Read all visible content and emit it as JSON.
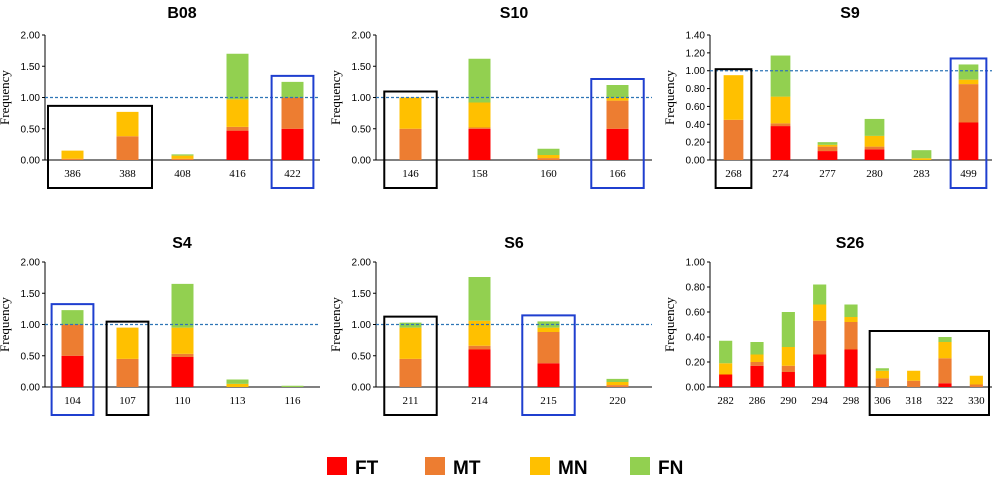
{
  "colors": {
    "FT": "#ff0000",
    "MT": "#ed7d31",
    "MN": "#ffc000",
    "FN": "#92d050",
    "threshold": "#2e75b6",
    "black_box": "#000000",
    "blue_box": "#1f3fcf"
  },
  "legend": [
    "FT",
    "MT",
    "MN",
    "FN"
  ],
  "chart_data": [
    {
      "type": "bar",
      "stacked": true,
      "title": "B08",
      "ylabel": "Frequency",
      "ylim": [
        0,
        2
      ],
      "yticks": [
        "0.00",
        "0.50",
        "1.00",
        "1.50",
        "2.00"
      ],
      "threshold": 1.0,
      "categories": [
        "386",
        "388",
        "408",
        "416",
        "422"
      ],
      "series": [
        {
          "name": "FT",
          "values": [
            0,
            0,
            0,
            0.47,
            0.5
          ]
        },
        {
          "name": "MT",
          "values": [
            0.02,
            0.38,
            0.02,
            0.06,
            0.5
          ]
        },
        {
          "name": "MN",
          "values": [
            0.13,
            0.39,
            0.05,
            0.44,
            0
          ]
        },
        {
          "name": "FN",
          "values": [
            0,
            0,
            0.02,
            0.73,
            0.25
          ]
        }
      ],
      "boxes": [
        {
          "color": "black",
          "from": 0,
          "to": 1
        },
        {
          "color": "blue",
          "from": 4,
          "to": 4
        }
      ]
    },
    {
      "type": "bar",
      "stacked": true,
      "title": "S10",
      "ylabel": "Frequency",
      "ylim": [
        0,
        2
      ],
      "yticks": [
        "0.00",
        "0.50",
        "1.00",
        "1.50",
        "2.00"
      ],
      "threshold": 1.0,
      "categories": [
        "146",
        "158",
        "160",
        "166"
      ],
      "series": [
        {
          "name": "FT",
          "values": [
            0,
            0.5,
            0,
            0.5
          ]
        },
        {
          "name": "MT",
          "values": [
            0.5,
            0.02,
            0.03,
            0.45
          ]
        },
        {
          "name": "MN",
          "values": [
            0.5,
            0.4,
            0.05,
            0.05
          ]
        },
        {
          "name": "FN",
          "values": [
            0,
            0.7,
            0.1,
            0.2
          ]
        }
      ],
      "boxes": [
        {
          "color": "black",
          "from": 0,
          "to": 0
        },
        {
          "color": "blue",
          "from": 3,
          "to": 3
        }
      ]
    },
    {
      "type": "bar",
      "stacked": true,
      "title": "S9",
      "ylabel": "Frequency",
      "ylim": [
        0,
        1.4
      ],
      "yticks": [
        "0.00",
        "0.20",
        "0.40",
        "0.60",
        "0.80",
        "1.00",
        "1.20",
        "1.40"
      ],
      "threshold": 1.0,
      "categories": [
        "268",
        "274",
        "277",
        "280",
        "283",
        "499"
      ],
      "series": [
        {
          "name": "FT",
          "values": [
            0,
            0.38,
            0.1,
            0.12,
            0,
            0.42
          ]
        },
        {
          "name": "MT",
          "values": [
            0.45,
            0.03,
            0.05,
            0.03,
            0,
            0.43
          ]
        },
        {
          "name": "MN",
          "values": [
            0.5,
            0.3,
            0.02,
            0.12,
            0.02,
            0.05
          ]
        },
        {
          "name": "FN",
          "values": [
            0,
            0.46,
            0.03,
            0.19,
            0.09,
            0.17
          ]
        }
      ],
      "boxes": [
        {
          "color": "black",
          "from": 0,
          "to": 0
        },
        {
          "color": "blue",
          "from": 5,
          "to": 5
        }
      ]
    },
    {
      "type": "bar",
      "stacked": true,
      "title": "S4",
      "ylabel": "Frequency",
      "ylim": [
        0,
        2
      ],
      "yticks": [
        "0.00",
        "0.50",
        "1.00",
        "1.50",
        "2.00"
      ],
      "threshold": 1.0,
      "categories": [
        "104",
        "107",
        "110",
        "113",
        "116"
      ],
      "series": [
        {
          "name": "FT",
          "values": [
            0.5,
            0,
            0.48,
            0,
            0
          ]
        },
        {
          "name": "MT",
          "values": [
            0.5,
            0.45,
            0.05,
            0,
            0
          ]
        },
        {
          "name": "MN",
          "values": [
            0,
            0.5,
            0.42,
            0.05,
            0
          ]
        },
        {
          "name": "FN",
          "values": [
            0.23,
            0,
            0.7,
            0.07,
            0.02
          ]
        }
      ],
      "boxes": [
        {
          "color": "blue",
          "from": 0,
          "to": 0
        },
        {
          "color": "black",
          "from": 1,
          "to": 1
        }
      ]
    },
    {
      "type": "bar",
      "stacked": true,
      "title": "S6",
      "ylabel": "Frequency",
      "ylim": [
        0,
        2
      ],
      "yticks": [
        "0.00",
        "0.50",
        "1.00",
        "1.50",
        "2.00"
      ],
      "threshold": 1.0,
      "categories": [
        "211",
        "214",
        "215",
        "220"
      ],
      "series": [
        {
          "name": "FT",
          "values": [
            0,
            0.6,
            0.38,
            0
          ]
        },
        {
          "name": "MT",
          "values": [
            0.45,
            0.06,
            0.5,
            0.03
          ]
        },
        {
          "name": "MN",
          "values": [
            0.5,
            0.4,
            0.07,
            0.05
          ]
        },
        {
          "name": "FN",
          "values": [
            0.08,
            0.7,
            0.1,
            0.05
          ]
        }
      ],
      "boxes": [
        {
          "color": "black",
          "from": 0,
          "to": 0
        },
        {
          "color": "blue",
          "from": 2,
          "to": 2
        }
      ]
    },
    {
      "type": "bar",
      "stacked": true,
      "title": "S26",
      "ylabel": "Frequency",
      "ylim": [
        0,
        1
      ],
      "yticks": [
        "0.00",
        "0.20",
        "0.40",
        "0.60",
        "0.80",
        "1.00"
      ],
      "threshold": null,
      "categories": [
        "282",
        "286",
        "290",
        "294",
        "298",
        "306",
        "318",
        "322",
        "330"
      ],
      "series": [
        {
          "name": "FT",
          "values": [
            0.1,
            0.17,
            0.12,
            0.26,
            0.3,
            0,
            0,
            0.03,
            0
          ]
        },
        {
          "name": "MT",
          "values": [
            0,
            0.03,
            0.05,
            0.27,
            0.22,
            0.07,
            0.05,
            0.2,
            0.02
          ]
        },
        {
          "name": "MN",
          "values": [
            0.09,
            0.06,
            0.15,
            0.13,
            0.04,
            0.06,
            0.08,
            0.13,
            0.07
          ]
        },
        {
          "name": "FN",
          "values": [
            0.18,
            0.1,
            0.28,
            0.16,
            0.1,
            0.02,
            0,
            0.04,
            0
          ]
        }
      ],
      "boxes": [
        {
          "color": "black",
          "from": 5,
          "to": 8
        }
      ]
    }
  ]
}
